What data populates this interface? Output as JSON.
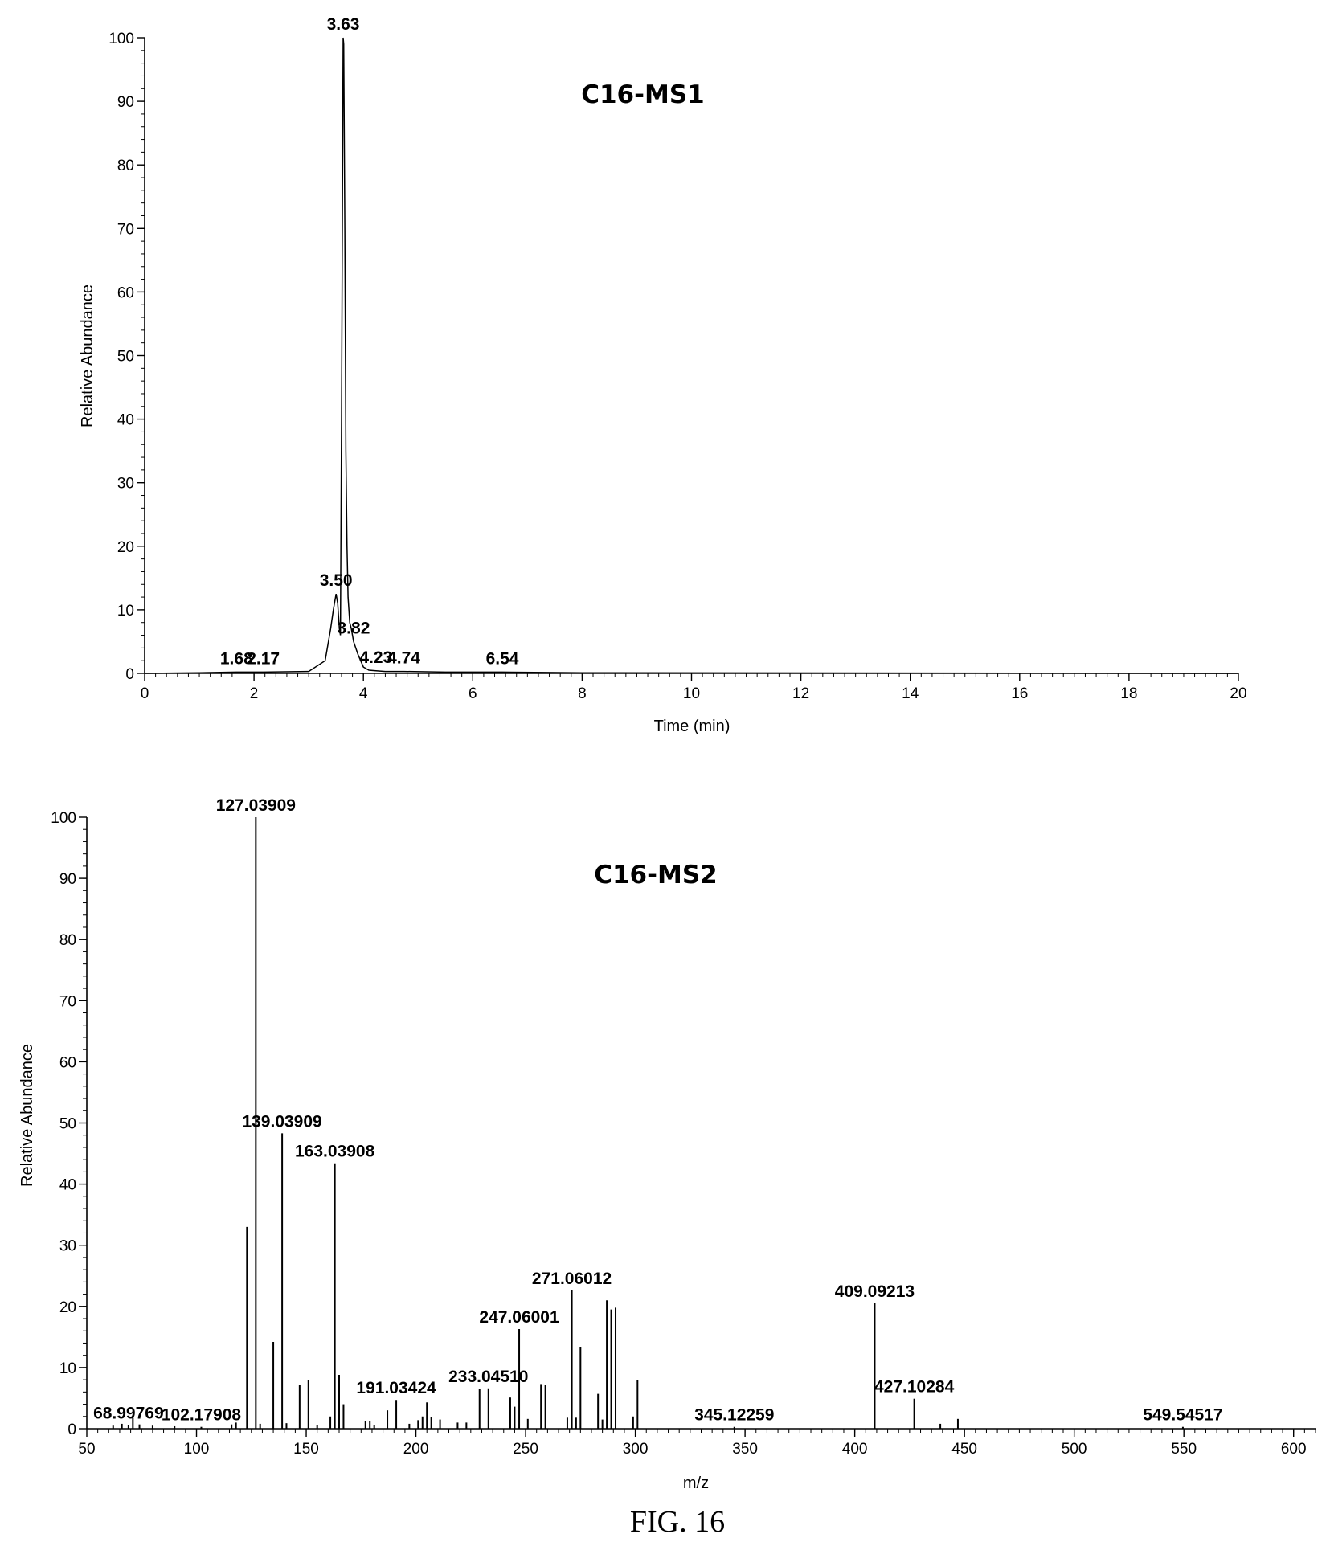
{
  "figure_caption": "FIG. 16",
  "chart_data": [
    {
      "type": "line",
      "title": "C16-MS1",
      "xlabel": "Time (min)",
      "ylabel": "Relative Abundance",
      "xlim": [
        0,
        20
      ],
      "ylim": [
        0,
        100
      ],
      "xticks": [
        0,
        2,
        4,
        6,
        8,
        10,
        12,
        14,
        16,
        18,
        20
      ],
      "yticks": [
        0,
        10,
        20,
        30,
        40,
        50,
        60,
        70,
        80,
        90,
        100
      ],
      "grid": false,
      "series": [
        {
          "x": [
            0,
            1.0,
            1.68,
            2.17,
            3.0,
            3.3,
            3.4,
            3.45,
            3.5,
            3.53,
            3.56,
            3.58,
            3.6,
            3.62,
            3.63,
            3.64,
            3.66,
            3.68,
            3.7,
            3.72,
            3.75,
            3.78,
            3.8,
            3.82,
            3.86,
            3.9,
            3.95,
            4.0,
            4.1,
            4.23,
            4.4,
            4.74,
            5.5,
            6.54,
            8,
            20
          ],
          "y": [
            0,
            0.1,
            0.2,
            0.2,
            0.3,
            2,
            7,
            10,
            12.5,
            11,
            7,
            6,
            40,
            80,
            100,
            99,
            70,
            35,
            20,
            12,
            8,
            7,
            6,
            5,
            4,
            3,
            2,
            1,
            0.5,
            0.4,
            0.3,
            0.3,
            0.2,
            0.2,
            0.1,
            0
          ]
        }
      ],
      "peak_labels": [
        {
          "text": "3.63",
          "x": 3.63,
          "y": 100
        },
        {
          "text": "3.50",
          "x": 3.5,
          "y": 12.5
        },
        {
          "text": "3.82",
          "x": 3.82,
          "y": 5
        },
        {
          "text": "4.23",
          "x": 4.23,
          "y": 0.4
        },
        {
          "text": "4.74",
          "x": 4.74,
          "y": 0.3
        },
        {
          "text": "6.54",
          "x": 6.54,
          "y": 0.2
        },
        {
          "text": "1.68",
          "x": 1.68,
          "y": 0.2
        },
        {
          "text": "2.17",
          "x": 2.17,
          "y": 0.2
        }
      ]
    },
    {
      "type": "bar",
      "title": "C16-MS2",
      "xlabel": "m/z",
      "ylabel": "Relative Abundance",
      "xlim": [
        50,
        610
      ],
      "ylim": [
        0,
        100
      ],
      "xticks": [
        50,
        100,
        150,
        200,
        250,
        300,
        350,
        400,
        450,
        500,
        550,
        600
      ],
      "yticks": [
        0,
        10,
        20,
        30,
        40,
        50,
        60,
        70,
        80,
        90,
        100
      ],
      "grid": false,
      "series": [
        {
          "mz": [
            62,
            66,
            68.99769,
            71,
            74,
            80,
            90,
            102.17908,
            116,
            118,
            123,
            127.03909,
            129,
            135,
            139.03909,
            141,
            147,
            151,
            155,
            161,
            163.03908,
            165,
            167,
            177,
            179,
            181,
            187,
            191.03424,
            197,
            201,
            203,
            205,
            207,
            211,
            219,
            223,
            229,
            233.0451,
            243,
            245,
            247.06001,
            251,
            257,
            259,
            269,
            271.06012,
            273,
            275,
            283,
            285,
            287,
            289,
            291,
            299,
            301,
            345.12259,
            409.09213,
            427.10284,
            439,
            447,
            549.54517
          ],
          "intensity": [
            0.5,
            0.8,
            0.6,
            1.8,
            0.7,
            0.5,
            0.4,
            0.3,
            0.7,
            1.0,
            33.0,
            100.0,
            0.8,
            14.2,
            48.3,
            0.9,
            7.1,
            7.9,
            0.6,
            2.0,
            43.4,
            8.8,
            4.0,
            1.2,
            1.3,
            0.6,
            3.0,
            4.7,
            0.8,
            1.4,
            2.0,
            4.3,
            1.9,
            1.5,
            1.0,
            1.0,
            6.5,
            6.6,
            5.1,
            3.6,
            16.3,
            1.6,
            7.3,
            7.1,
            1.8,
            22.6,
            1.8,
            13.4,
            5.7,
            1.5,
            21.0,
            19.5,
            19.8,
            2.0,
            7.9,
            0.3,
            20.5,
            4.9,
            0.8,
            1.6,
            0.3
          ]
        }
      ],
      "peak_labels": [
        {
          "text": "127.03909",
          "mz": 127.03909,
          "y": 100.0
        },
        {
          "text": "139.03909",
          "mz": 139.03909,
          "y": 48.3
        },
        {
          "text": "163.03908",
          "mz": 163.03908,
          "y": 43.4
        },
        {
          "text": "271.06012",
          "mz": 271.06012,
          "y": 22.6
        },
        {
          "text": "409.09213",
          "mz": 409.09213,
          "y": 20.5
        },
        {
          "text": "247.06001",
          "mz": 247.06001,
          "y": 16.3
        },
        {
          "text": "191.03424",
          "mz": 191.03424,
          "y": 4.7
        },
        {
          "text": "233.04510",
          "mz": 233.0451,
          "y": 6.6
        },
        {
          "text": "102.17908",
          "mz": 102.17908,
          "y": 0.3
        },
        {
          "text": "427.10284",
          "mz": 427.10284,
          "y": 4.9
        },
        {
          "text": "68.99769",
          "mz": 68.99769,
          "y": 0.6
        },
        {
          "text": "345.12259",
          "mz": 345.12259,
          "y": 0.3
        },
        {
          "text": "549.54517",
          "mz": 549.54517,
          "y": 0.3
        }
      ]
    }
  ]
}
